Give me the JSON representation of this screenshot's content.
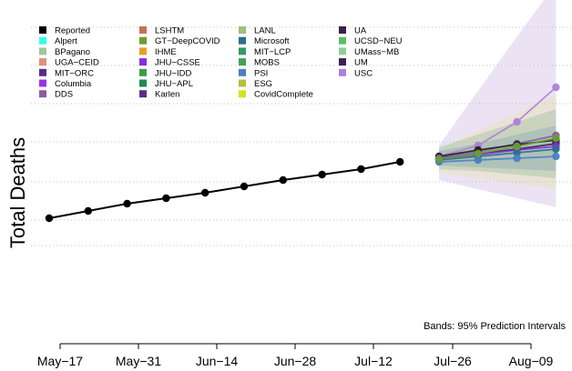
{
  "chart_data": {
    "type": "line",
    "title": "",
    "ylabel": "Total Deaths",
    "xlabel": "",
    "x_tick_labels": [
      "May−17",
      "May−31",
      "Jun−14",
      "Jun−28",
      "Jul−12",
      "Jul−26",
      "Aug−09"
    ],
    "grid": true,
    "legend_position": "top-left",
    "annotation": "Bands: 95% Prediction Intervals",
    "legend": [
      {
        "name": "Reported",
        "color": "#000000"
      },
      {
        "name": "Alpert",
        "color": "#33ffe6"
      },
      {
        "name": "BPagano",
        "color": "#9dc79a"
      },
      {
        "name": "UGA−CEID",
        "color": "#e58c7b"
      },
      {
        "name": "MIT−ORC",
        "color": "#5b2a86"
      },
      {
        "name": "Columbia",
        "color": "#9933e6"
      },
      {
        "name": "DDS",
        "color": "#8c5aa6"
      },
      {
        "name": "LSHTM",
        "color": "#c2735a"
      },
      {
        "name": "GT−DeepCOVID",
        "color": "#6b9f2f"
      },
      {
        "name": "IHME",
        "color": "#e6a020"
      },
      {
        "name": "JHU−CSSE",
        "color": "#8a2be2"
      },
      {
        "name": "JHU−IDD",
        "color": "#3c9a4a"
      },
      {
        "name": "JHU−APL",
        "color": "#1f8a4c"
      },
      {
        "name": "Karlen",
        "color": "#5a2d8c"
      },
      {
        "name": "LANL",
        "color": "#9fbf7a"
      },
      {
        "name": "Microsoft",
        "color": "#2a6f8f"
      },
      {
        "name": "MIT−LCP",
        "color": "#2e9a6a"
      },
      {
        "name": "MOBS",
        "color": "#4a9e5a"
      },
      {
        "name": "PSI",
        "color": "#4a7fc1"
      },
      {
        "name": "ESG",
        "color": "#b5bf3a"
      },
      {
        "name": "CovidComplete",
        "color": "#d8e020"
      },
      {
        "name": "UA",
        "color": "#3d1f4a"
      },
      {
        "name": "UCSD−NEU",
        "color": "#5cbf6a"
      },
      {
        "name": "UMass−MB",
        "color": "#8fcf9a"
      },
      {
        "name": "UM",
        "color": "#3a1f5a"
      },
      {
        "name": "USC",
        "color": "#b07fd6"
      }
    ],
    "reported": {
      "name": "Reported",
      "x": [
        0,
        1,
        2,
        3,
        4,
        5,
        6,
        7,
        8,
        9
      ],
      "y": [
        100,
        104,
        108,
        111,
        114,
        117.5,
        121,
        124,
        127,
        131
      ]
    },
    "forecast_x": [
      10,
      11,
      12,
      13
    ],
    "forecasts": [
      {
        "name": "USC",
        "color": "#b07fd6",
        "y": [
          134,
          140,
          153,
          172
        ]
      },
      {
        "name": "DDS",
        "color": "#8c5aa6",
        "y": [
          133.5,
          136.5,
          141,
          145.5
        ]
      },
      {
        "name": "Reported",
        "color": "#222222",
        "y": [
          134,
          137.5,
          140.5,
          143
        ]
      },
      {
        "name": "UA",
        "color": "#3d1f4a",
        "y": [
          132.5,
          135.5,
          138,
          141
        ]
      },
      {
        "name": "JHU−CSSE",
        "color": "#8a2be2",
        "y": [
          133,
          135,
          137.5,
          139.5
        ]
      },
      {
        "name": "Microsoft",
        "color": "#2a6f8f",
        "y": [
          132,
          134,
          136,
          138
        ]
      },
      {
        "name": "PSI",
        "color": "#4a7fc1",
        "y": [
          131,
          132,
          133,
          134
        ]
      },
      {
        "name": "GT−DeepCOVID",
        "color": "#6b9f2f",
        "y": [
          132.5,
          135.5,
          139.5,
          144
        ]
      }
    ],
    "bands": [
      {
        "name": "USC",
        "color": "#b79ad6",
        "opacity": 0.28,
        "lo": [
          121,
          116,
          111,
          106
        ],
        "hi": [
          140,
          170,
          200,
          229
        ]
      },
      {
        "name": "IHME",
        "color": "#e6e0a0",
        "opacity": 0.35,
        "lo": [
          125,
          122,
          119,
          116
        ],
        "hi": [
          138,
          148,
          158,
          168
        ]
      },
      {
        "name": "MOBS",
        "color": "#5a9e6a",
        "opacity": 0.22,
        "lo": [
          127,
          126,
          124,
          122
        ],
        "hi": [
          139,
          146,
          153,
          160
        ]
      },
      {
        "name": "DDS",
        "color": "#5a8fb0",
        "opacity": 0.25,
        "lo": [
          129,
          128,
          127,
          126
        ],
        "hi": [
          137,
          141,
          146,
          151
        ]
      }
    ]
  }
}
